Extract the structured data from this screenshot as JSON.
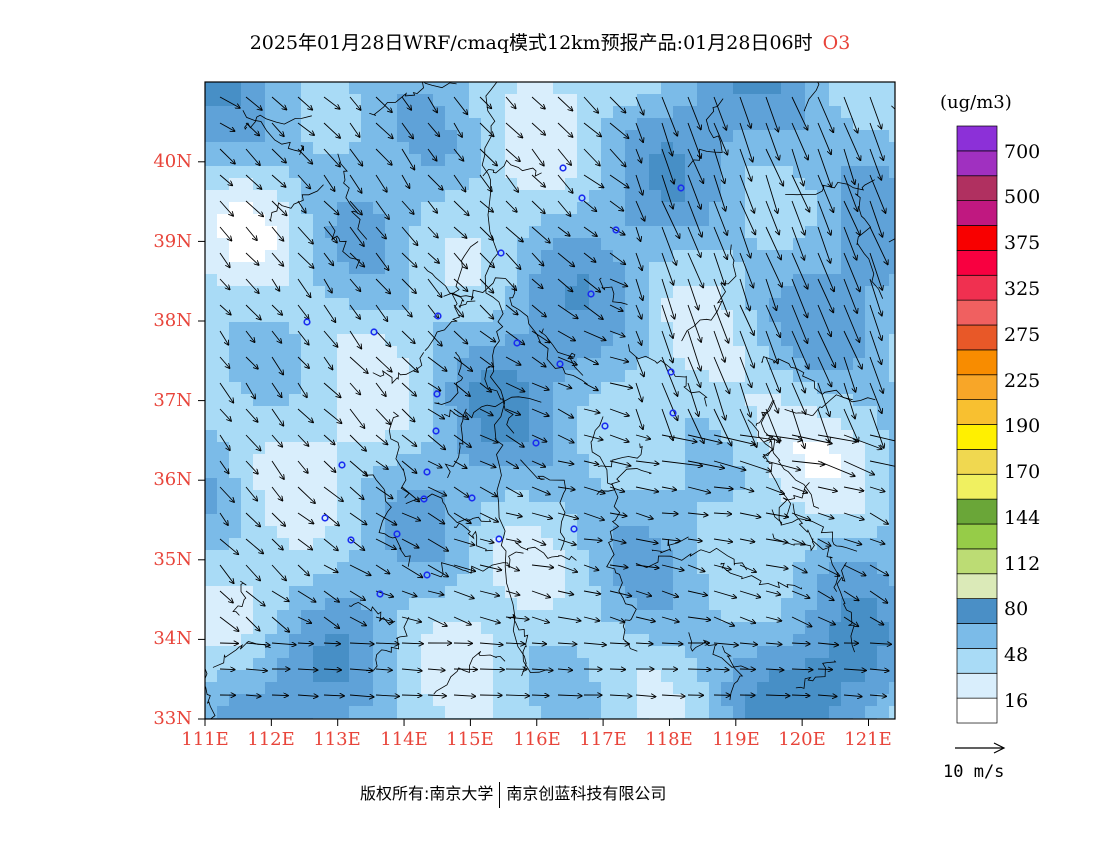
{
  "title": {
    "main": "2025年01月28日WRF/cmaq模式12km预报产品:01月28日06时",
    "species": "O3"
  },
  "map": {
    "lat_labels": [
      "40N",
      "39N",
      "38N",
      "37N",
      "36N",
      "35N",
      "34N",
      "33N"
    ],
    "lon_labels": [
      "111E",
      "112E",
      "113E",
      "114E",
      "115E",
      "116E",
      "117E",
      "118E",
      "119E",
      "120E",
      "121E"
    ],
    "lat_range": [
      33,
      41
    ],
    "lon_range": [
      111,
      121.4
    ],
    "fill_palette": [
      "#ffffff",
      "#d9eefc",
      "#a9dbf6",
      "#7bbbe8",
      "#5fa2d8",
      "#478fc6"
    ]
  },
  "colorbar": {
    "unit": "(ug/m3)",
    "labels": [
      "700",
      "500",
      "375",
      "325",
      "275",
      "225",
      "190",
      "170",
      "144",
      "112",
      "80",
      "48",
      "16"
    ],
    "colors": [
      "#ffffff",
      "#d9eefc",
      "#a9dbf6",
      "#7bbbe8",
      "#4a8fc6",
      "#dbeab8",
      "#bcdc74",
      "#96cc48",
      "#6aa638",
      "#f0f060",
      "#f0d850",
      "#fff000",
      "#f8c030",
      "#f8a628",
      "#f88c00",
      "#e85828",
      "#f06060",
      "#f03050",
      "#f80040",
      "#f80000",
      "#c01880",
      "#b03060",
      "#a030c0",
      "#8c30d8"
    ]
  },
  "wind_reference": {
    "label": "10 m/s"
  },
  "footer": {
    "copyright": "版权所有:南京大学",
    "company": "南京创蓝科技有限公司"
  }
}
